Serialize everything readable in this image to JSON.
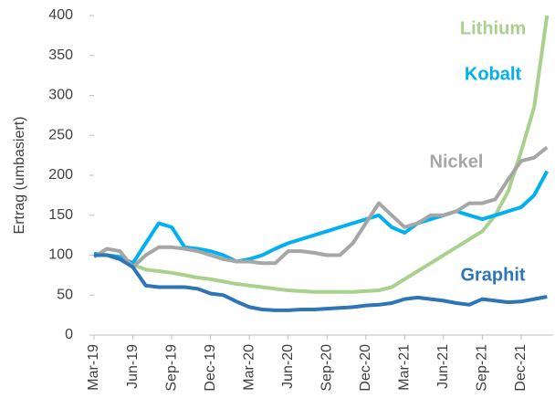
{
  "chart_data": {
    "type": "line",
    "y_label": "Ertrag (umbasiert)",
    "categories": [
      "Mar-19",
      null,
      null,
      "Jun-19",
      null,
      null,
      "Sep-19",
      null,
      null,
      "Dec-19",
      null,
      null,
      "Mar-20",
      null,
      null,
      "Jun-20",
      null,
      null,
      "Sep-20",
      null,
      null,
      "Dec-20",
      null,
      null,
      "Mar-21",
      null,
      null,
      "Jun-21",
      null,
      null,
      "Sep-21",
      null,
      null,
      "Dec-21",
      null,
      null
    ],
    "ylim": [
      0,
      400
    ],
    "yticks": [
      0,
      50,
      100,
      150,
      200,
      250,
      300,
      350,
      400
    ],
    "series": [
      {
        "name": "Lithium",
        "color": "#a9d18e",
        "values": [
          100,
          100,
          95,
          88,
          82,
          80,
          78,
          75,
          72,
          70,
          67,
          64,
          62,
          60,
          58,
          56,
          55,
          54,
          54,
          54,
          54,
          55,
          56,
          60,
          70,
          80,
          90,
          100,
          110,
          120,
          130,
          150,
          180,
          230,
          285,
          400
        ]
      },
      {
        "name": "Kobalt",
        "color": "#00b0f0",
        "values": [
          102,
          100,
          98,
          90,
          115,
          140,
          135,
          110,
          108,
          105,
          100,
          92,
          95,
          100,
          108,
          115,
          120,
          125,
          130,
          135,
          140,
          145,
          150,
          135,
          128,
          140,
          145,
          150,
          155,
          150,
          145,
          150,
          155,
          160,
          175,
          205
        ]
      },
      {
        "name": "Nickel",
        "color": "#a6a6a6",
        "values": [
          98,
          108,
          105,
          85,
          100,
          110,
          110,
          108,
          105,
          100,
          95,
          92,
          92,
          90,
          90,
          105,
          105,
          103,
          100,
          100,
          115,
          140,
          165,
          150,
          135,
          140,
          150,
          150,
          155,
          165,
          165,
          170,
          195,
          218,
          222,
          235
        ]
      },
      {
        "name": "Graphit",
        "color": "#2e75b6",
        "values": [
          100,
          100,
          95,
          85,
          62,
          60,
          60,
          60,
          58,
          52,
          50,
          42,
          35,
          32,
          31,
          31,
          32,
          32,
          33,
          34,
          35,
          37,
          38,
          40,
          45,
          47,
          45,
          43,
          40,
          38,
          45,
          43,
          41,
          42,
          45,
          48
        ]
      }
    ]
  }
}
